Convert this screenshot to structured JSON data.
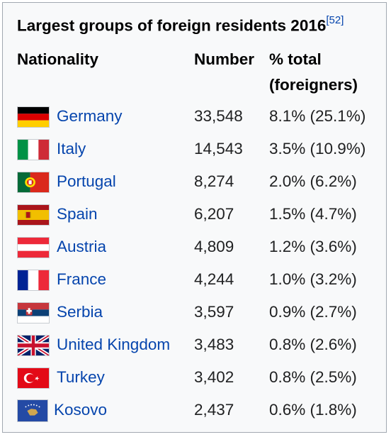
{
  "table": {
    "title": "Largest groups of foreign residents 2016",
    "footnote": "[52]",
    "headers": {
      "nationality": "Nationality",
      "number": "Number",
      "percent_line1": "% total",
      "percent_line2": "(foreigners)"
    },
    "rows": [
      {
        "flag": "germany-flag",
        "country": "Germany",
        "number": "33,548",
        "percent": "8.1% (25.1%)"
      },
      {
        "flag": "italy-flag",
        "country": "Italy",
        "number": "14,543",
        "percent": "3.5% (10.9%)"
      },
      {
        "flag": "portugal-flag",
        "country": "Portugal",
        "number": "8,274",
        "percent": "2.0% (6.2%)"
      },
      {
        "flag": "spain-flag",
        "country": "Spain",
        "number": "6,207",
        "percent": "1.5% (4.7%)"
      },
      {
        "flag": "austria-flag",
        "country": "Austria",
        "number": "4,809",
        "percent": "1.2% (3.6%)"
      },
      {
        "flag": "france-flag",
        "country": "France",
        "number": "4,244",
        "percent": "1.0% (3.2%)"
      },
      {
        "flag": "serbia-flag",
        "country": "Serbia",
        "number": "3,597",
        "percent": "0.9% (2.7%)"
      },
      {
        "flag": "united-kingdom-flag",
        "country": "United Kingdom",
        "number": "3,483",
        "percent": "0.8% (2.6%)"
      },
      {
        "flag": "turkey-flag",
        "country": "Turkey",
        "number": "3,402",
        "percent": "0.8% (2.5%)"
      },
      {
        "flag": "kosovo-flag",
        "country": "Kosovo",
        "number": "2,437",
        "percent": "0.6% (1.8%)"
      }
    ]
  }
}
